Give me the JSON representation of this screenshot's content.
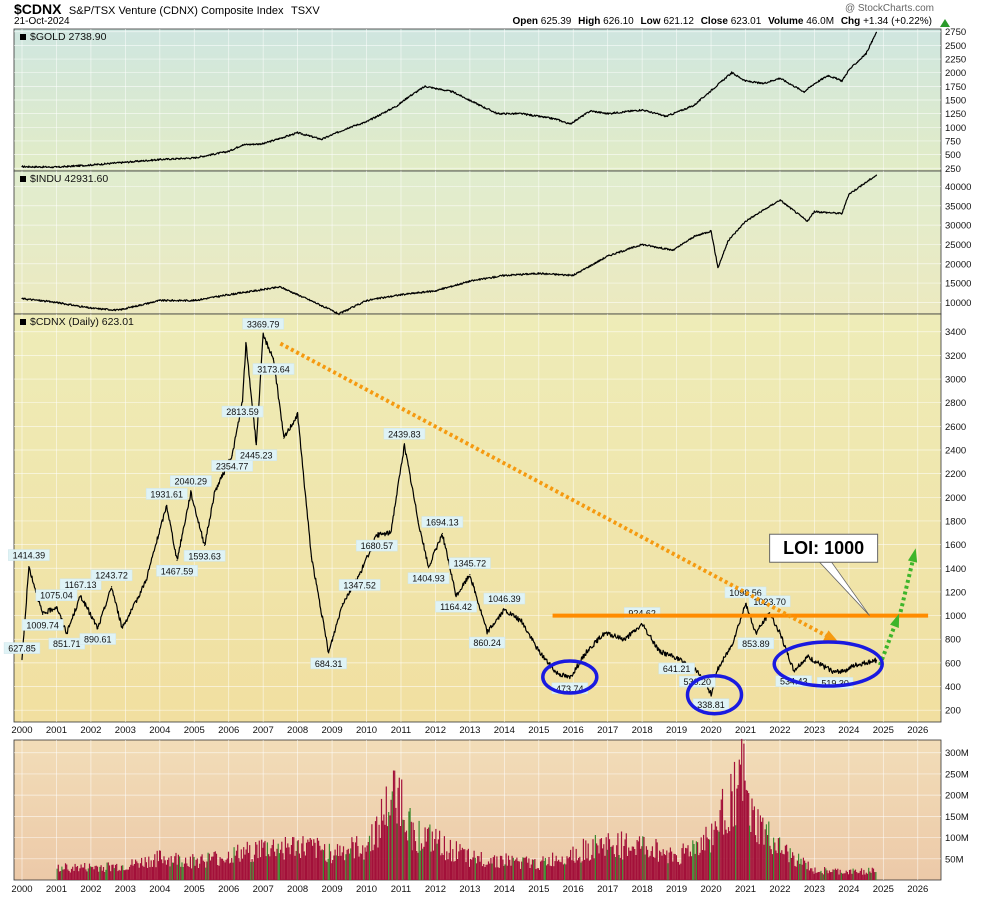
{
  "header": {
    "symbol": "$CDNX",
    "name": "S&P/TSX Venture (CDNX) Composite Index",
    "exchange": "TSXV",
    "date": "21-Oct-2024",
    "watermark": "@ StockCharts.com",
    "ohlc": [
      {
        "label": "Open",
        "value": "625.39"
      },
      {
        "label": "High",
        "value": "626.10"
      },
      {
        "label": "Low",
        "value": "621.12"
      },
      {
        "label": "Close",
        "value": "623.01"
      },
      {
        "label": "Volume",
        "value": "46.0M"
      },
      {
        "label": "Chg",
        "value": "+1.34 (+0.22%)"
      }
    ],
    "change_icon": "triangle-up-icon"
  },
  "colors": {
    "gold_bg_top": "#cfe6e0",
    "gold_bg_bottom": "#e2ecc6",
    "indu_bg_top": "#e0edcf",
    "indu_bg_bottom": "#ece9bf",
    "cdnx_bg_top": "#eeecb8",
    "cdnx_bg_bottom": "#f1dfa0",
    "vol_bg_top": "#f2ddb8",
    "vol_bg_bottom": "#ecc9a8",
    "volume": "#a3103a",
    "volume_up": "#3c8a30",
    "trend_orange": "#f59a10",
    "loi_line": "#ff8c00",
    "circle_blue": "#1a1ae0",
    "arrow_green": "#3eb52a"
  },
  "chart_data": [
    {
      "type": "line",
      "title": "$GOLD 2738.90",
      "ylim": [
        200,
        2800
      ],
      "y_ticks": [
        "250",
        "500",
        "750",
        "1000",
        "1250",
        "1500",
        "1750",
        "2000",
        "2250",
        "2500",
        "2750"
      ],
      "x": [
        2000,
        2001,
        2002,
        2003,
        2004,
        2005,
        2006,
        2006.4,
        2007,
        2008,
        2008.7,
        2009.5,
        2010,
        2010.9,
        2011.2,
        2011.7,
        2012.5,
        2013.3,
        2013.8,
        2014.5,
        2015.5,
        2015.9,
        2016.5,
        2017,
        2018,
        2018.7,
        2019.5,
        2020.6,
        2021,
        2021.5,
        2022,
        2022.7,
        2023,
        2023.4,
        2023.8,
        2024,
        2024.5,
        2024.8
      ],
      "values": [
        280,
        270,
        310,
        360,
        410,
        440,
        560,
        680,
        700,
        900,
        780,
        1000,
        1100,
        1400,
        1550,
        1750,
        1650,
        1400,
        1250,
        1250,
        1150,
        1060,
        1300,
        1250,
        1320,
        1200,
        1400,
        2000,
        1850,
        1800,
        1900,
        1650,
        1800,
        1950,
        1850,
        2050,
        2350,
        2738.9
      ]
    },
    {
      "type": "line",
      "title": "$INDU 42931.60",
      "ylim": [
        7000,
        44000
      ],
      "y_ticks": [
        "10000",
        "15000",
        "20000",
        "25000",
        "30000",
        "35000",
        "40000"
      ],
      "x": [
        2000,
        2000.5,
        2001,
        2002,
        2002.8,
        2004,
        2005,
        2006,
        2007.5,
        2008.5,
        2009.2,
        2010,
        2011,
        2012,
        2013,
        2014,
        2015,
        2016,
        2017,
        2018,
        2018.9,
        2019.5,
        2020,
        2020.2,
        2020.5,
        2021,
        2022,
        2022.8,
        2023,
        2023.8,
        2024,
        2024.8
      ],
      "values": [
        11000,
        10500,
        10000,
        8500,
        8000,
        10500,
        10500,
        12000,
        14000,
        10000,
        7000,
        10500,
        12000,
        13000,
        15500,
        17000,
        17500,
        17000,
        22000,
        25000,
        23500,
        27000,
        28500,
        19000,
        26000,
        31000,
        36500,
        31000,
        33500,
        33000,
        38000,
        42931.6
      ]
    },
    {
      "type": "line",
      "title": "$CDNX (Daily) 623.01",
      "ylim": [
        100,
        3550
      ],
      "y_ticks": [
        "200",
        "400",
        "600",
        "800",
        "1000",
        "1200",
        "1400",
        "1600",
        "1800",
        "2000",
        "2200",
        "2400",
        "2600",
        "2800",
        "3000",
        "3200",
        "3400"
      ],
      "x_ticks": [
        "2000",
        "2001",
        "2002",
        "2003",
        "2004",
        "2005",
        "2006",
        "2007",
        "2008",
        "2009",
        "2010",
        "2011",
        "2012",
        "2013",
        "2014",
        "2015",
        "2016",
        "2017",
        "2018",
        "2019",
        "2020",
        "2021",
        "2022",
        "2023",
        "2024",
        "2025",
        "2026"
      ],
      "x": [
        2000,
        2000.2,
        2000.6,
        2001,
        2001.3,
        2001.7,
        2002.2,
        2002.6,
        2002.9,
        2003.2,
        2003.6,
        2004.2,
        2004.5,
        2004.9,
        2005.3,
        2005.6,
        2006.1,
        2006.4,
        2006.5,
        2006.8,
        2007.0,
        2007.3,
        2007.6,
        2008.0,
        2008.4,
        2008.9,
        2009.3,
        2009.8,
        2010.3,
        2010.7,
        2011.1,
        2011.5,
        2011.8,
        2012.2,
        2012.6,
        2013.0,
        2013.5,
        2014.0,
        2014.5,
        2015.0,
        2015.5,
        2015.9,
        2016.4,
        2016.9,
        2017.5,
        2018.0,
        2018.5,
        2019.0,
        2019.6,
        2020.0,
        2020.2,
        2020.6,
        2021.0,
        2021.3,
        2021.7,
        2022.0,
        2022.4,
        2022.8,
        2023.2,
        2023.6,
        2023.9,
        2024.2,
        2024.5,
        2024.8
      ],
      "values": [
        627.85,
        1414.39,
        1009.74,
        1075.04,
        851.71,
        1167.13,
        890.61,
        1243.72,
        900,
        1050,
        1300,
        1931.61,
        1467.59,
        2040.29,
        1593.63,
        2050,
        2354.77,
        2813.59,
        3300,
        2445.23,
        3369.79,
        3173.64,
        2500,
        2700,
        1500,
        684.31,
        1100,
        1347.52,
        1680.57,
        1700,
        2439.83,
        1800,
        1404.93,
        1694.13,
        1164.42,
        1345.72,
        860.24,
        1046.39,
        950,
        700,
        520,
        473.74,
        700,
        850,
        800,
        924.62,
        700,
        641.21,
        530.2,
        338.81,
        550,
        750,
        1098.56,
        853.89,
        1023.7,
        850,
        534.43,
        650,
        580,
        519.3,
        540,
        580,
        600,
        623.01
      ],
      "annotations": [
        "3369.79",
        "3173.64",
        "2813.59",
        "2354.77",
        "2445.23",
        "1414.39",
        "1167.13",
        "1075.04",
        "1009.74",
        "851.71",
        "1243.72",
        "890.61",
        "1931.61",
        "1467.59",
        "2040.29",
        "1593.63",
        "2439.83",
        "1680.57",
        "1347.52",
        "1694.13",
        "1404.93",
        "1345.72",
        "1164.42",
        "1046.39",
        "860.24",
        "627.85",
        "684.31",
        "473.74",
        "924.62",
        "641.21",
        "530.20",
        "338.81",
        "1098.56",
        "1023.70",
        "853.89",
        "534.43",
        "519.30"
      ],
      "loi_label": "LOI: 1000",
      "loi_value": 1000,
      "trend_from": [
        2007.5,
        3300
      ],
      "trend_to": [
        2023.6,
        790
      ]
    },
    {
      "type": "bar",
      "title": "Volume",
      "ylim": [
        0,
        330
      ],
      "y_ticks": [
        "50M",
        "100M",
        "150M",
        "200M",
        "250M",
        "300M"
      ],
      "x_ticks": [
        "2000",
        "2001",
        "2002",
        "2003",
        "2004",
        "2005",
        "2006",
        "2007",
        "2008",
        "2009",
        "2010",
        "2011",
        "2012",
        "2013",
        "2014",
        "2015",
        "2016",
        "2017",
        "2018",
        "2019",
        "2020",
        "2021",
        "2022",
        "2023",
        "2024",
        "2025",
        "2026"
      ],
      "x": [
        2001,
        2002,
        2003,
        2004,
        2005,
        2006,
        2007,
        2008,
        2009,
        2010,
        2010.9,
        2011.3,
        2012,
        2013,
        2014,
        2015,
        2016,
        2017,
        2018,
        2019,
        2020,
        2020.9,
        2021.1,
        2022,
        2023,
        2024,
        2024.8
      ],
      "values": [
        30,
        32,
        35,
        55,
        48,
        60,
        80,
        85,
        70,
        85,
        230,
        120,
        95,
        55,
        50,
        40,
        70,
        90,
        85,
        60,
        110,
        270,
        160,
        75,
        25,
        20,
        25
      ]
    }
  ]
}
